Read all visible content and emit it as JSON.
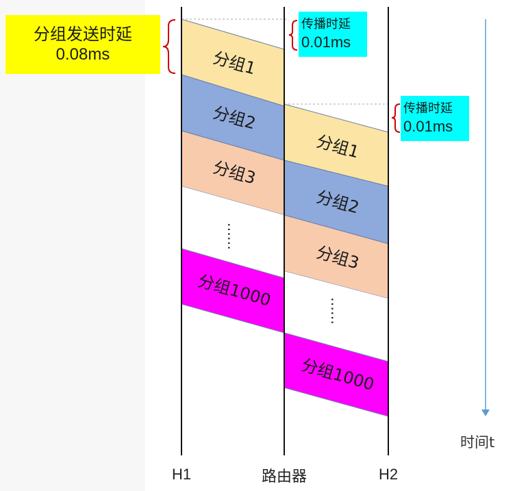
{
  "transmit_delay": {
    "line1": "分组发送时延",
    "line2": "0.08ms"
  },
  "prop_delay_1": {
    "line1": "传播时延",
    "line2": "0.01ms"
  },
  "prop_delay_2": {
    "line1": "传播时延",
    "line2": "0.01ms"
  },
  "nodes": {
    "h1": "H1",
    "router": "路由器",
    "h2": "H2"
  },
  "time_axis": {
    "label": "时间t"
  },
  "packets_h1": [
    {
      "label": "分组1",
      "color": "#fbe4a4"
    },
    {
      "label": "分组2",
      "color": "#8ea9db"
    },
    {
      "label": "分组3",
      "color": "#f8cbad"
    },
    {
      "label": "……",
      "color": "#ffffff"
    },
    {
      "label": "分组1000",
      "color": "#ff00ff"
    }
  ],
  "packets_router": [
    {
      "label": "分组1",
      "color": "#fbe4a4"
    },
    {
      "label": "分组2",
      "color": "#8ea9db"
    },
    {
      "label": "分组3",
      "color": "#f8cbad"
    },
    {
      "label": "……",
      "color": "#ffffff"
    },
    {
      "label": "分组1000",
      "color": "#ff00ff"
    }
  ],
  "colors": {
    "transmit_box": "#ffff00",
    "prop_box": "#00ffff",
    "brace": "#cc0000",
    "arrow": "#5b9bd5"
  }
}
